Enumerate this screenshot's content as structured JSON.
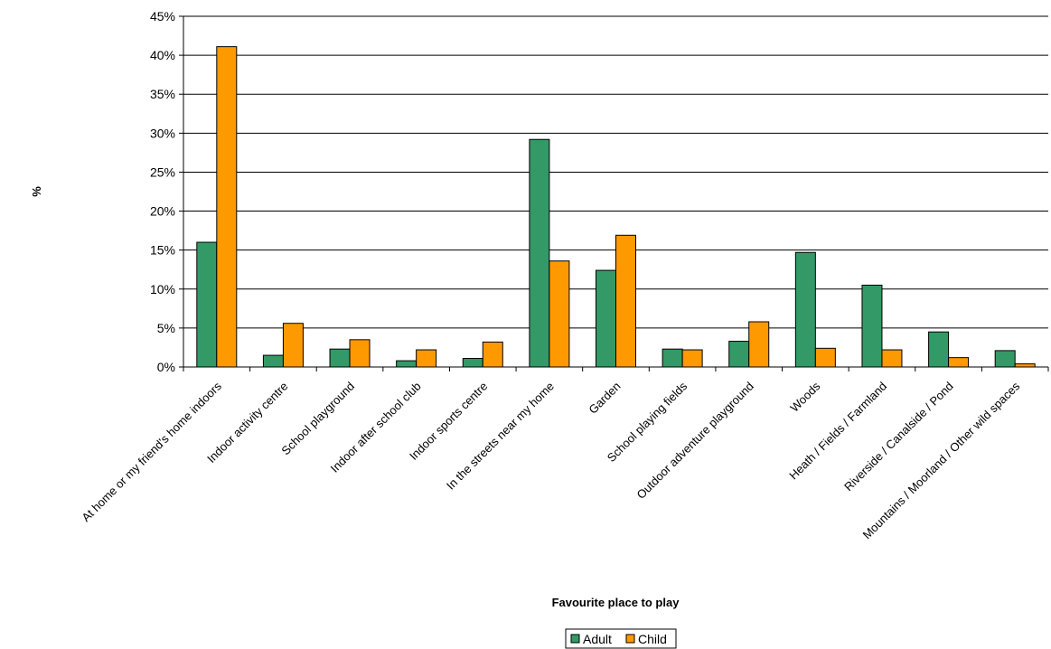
{
  "chart_data": {
    "type": "bar",
    "xlabel": "Favourite place to play",
    "ylabel": "%",
    "ylim": [
      0,
      45
    ],
    "ytick_step": 5,
    "ytick_suffix": "%",
    "grid": true,
    "legend_placement": "bottom-center",
    "categories": [
      "At home or my friend's home indoors",
      "Indoor activity centre",
      "School playground",
      "Indoor after school club",
      "Indoor sports centre",
      "In the streets near my home",
      "Garden",
      "School playing fields",
      "Outdoor adventure playground",
      "Woods",
      "Heath / Fields / Farmland",
      "Riverside / Canalside / Pond",
      "Mountains / Moorland / Other wild spaces"
    ],
    "series": [
      {
        "name": "Adult",
        "color": "#339966",
        "values": [
          16.0,
          1.5,
          2.3,
          0.8,
          1.1,
          29.2,
          12.4,
          2.3,
          3.3,
          14.7,
          10.5,
          4.5,
          2.1
        ]
      },
      {
        "name": "Child",
        "color": "#ff9900",
        "values": [
          41.1,
          5.6,
          3.5,
          2.2,
          3.2,
          13.6,
          16.9,
          2.2,
          5.8,
          2.4,
          2.2,
          1.2,
          0.4
        ]
      }
    ]
  }
}
